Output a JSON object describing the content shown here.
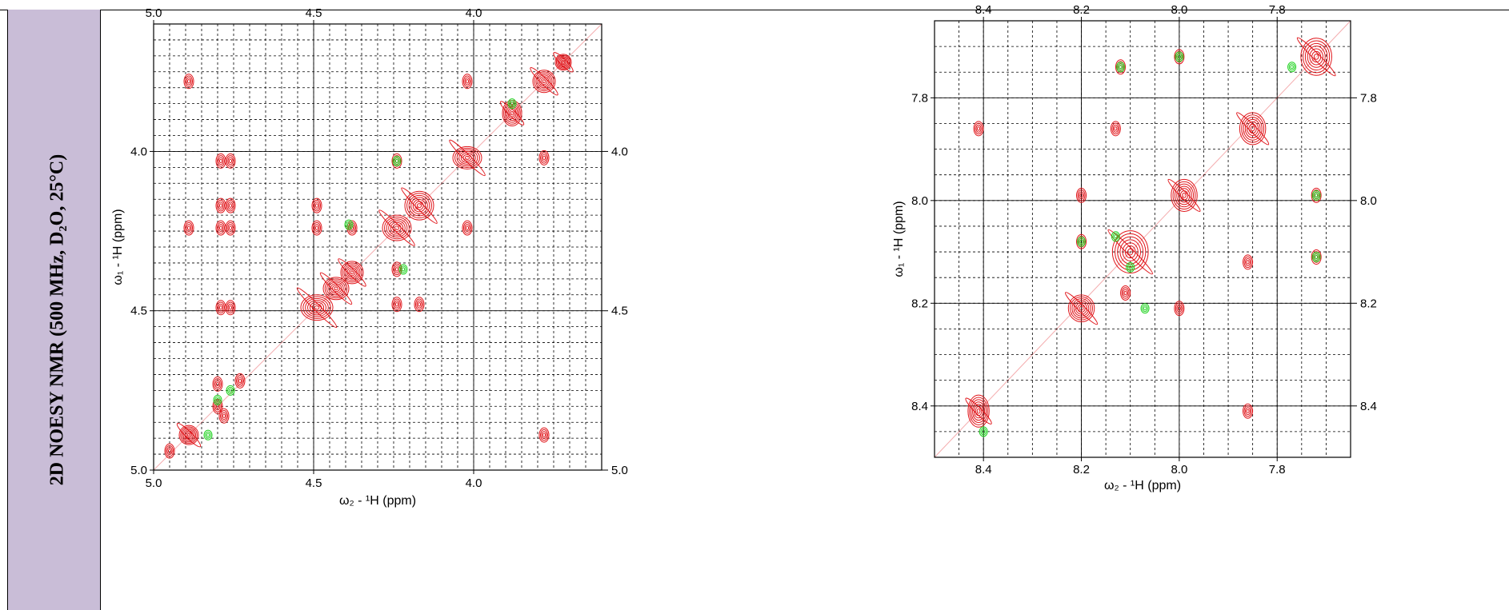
{
  "side_label": "2D NOESY NMR (500 MHz, D₂O, 25°C)",
  "colors": {
    "positive": "#e0151a",
    "negative": "#1ed21e",
    "grid": "#000000",
    "label_bg": "#c9bdd7"
  },
  "chart_data": [
    {
      "type": "heatmap",
      "xlabel": "ω₂ - ¹H  (ppm)",
      "ylabel": "ω₁ - ¹H  (ppm)",
      "xlim": [
        5.0,
        3.6
      ],
      "ylim": [
        3.6,
        5.0
      ],
      "x_ticks": [
        "5.0",
        "4.5",
        "4.0"
      ],
      "y_ticks": [
        "4.0",
        "4.5",
        "5.0"
      ],
      "right_y_ticks": [
        "4.0",
        "4.5",
        "5.0"
      ],
      "x_tick_values": [
        5.0,
        4.5,
        4.0
      ],
      "y_tick_values": [
        4.0,
        4.5,
        5.0
      ],
      "grid": "dashed",
      "diagonal_peaks": [
        {
          "x": 3.72,
          "y": 3.72,
          "w": 0.03,
          "h": 0.03
        },
        {
          "x": 3.78,
          "y": 3.78,
          "w": 0.05,
          "h": 0.05
        },
        {
          "x": 3.88,
          "y": 3.88,
          "w": 0.04,
          "h": 0.06
        },
        {
          "x": 4.02,
          "y": 4.02,
          "w": 0.07,
          "h": 0.05
        },
        {
          "x": 4.17,
          "y": 4.17,
          "w": 0.07,
          "h": 0.07
        },
        {
          "x": 4.24,
          "y": 4.24,
          "w": 0.07,
          "h": 0.06
        },
        {
          "x": 4.38,
          "y": 4.38,
          "w": 0.05,
          "h": 0.05
        },
        {
          "x": 4.43,
          "y": 4.43,
          "w": 0.06,
          "h": 0.05
        },
        {
          "x": 4.49,
          "y": 4.49,
          "w": 0.08,
          "h": 0.06
        },
        {
          "x": 4.89,
          "y": 4.89,
          "w": 0.04,
          "h": 0.04
        }
      ],
      "cross_peaks_positive": [
        {
          "x": 4.89,
          "y": 3.78
        },
        {
          "x": 4.89,
          "y": 4.24
        },
        {
          "x": 4.02,
          "y": 3.78
        },
        {
          "x": 3.78,
          "y": 4.02
        },
        {
          "x": 4.79,
          "y": 4.03
        },
        {
          "x": 4.76,
          "y": 4.03
        },
        {
          "x": 4.79,
          "y": 4.17
        },
        {
          "x": 4.76,
          "y": 4.17
        },
        {
          "x": 4.79,
          "y": 4.24
        },
        {
          "x": 4.76,
          "y": 4.24
        },
        {
          "x": 4.79,
          "y": 4.49
        },
        {
          "x": 4.76,
          "y": 4.49
        },
        {
          "x": 4.49,
          "y": 4.17
        },
        {
          "x": 4.49,
          "y": 4.24
        },
        {
          "x": 4.38,
          "y": 4.24
        },
        {
          "x": 4.24,
          "y": 4.03
        },
        {
          "x": 4.02,
          "y": 4.24
        },
        {
          "x": 4.24,
          "y": 4.37
        },
        {
          "x": 4.24,
          "y": 4.48
        },
        {
          "x": 4.17,
          "y": 4.48
        },
        {
          "x": 4.8,
          "y": 4.73
        },
        {
          "x": 4.73,
          "y": 4.72
        },
        {
          "x": 4.8,
          "y": 4.8
        },
        {
          "x": 4.78,
          "y": 4.83
        },
        {
          "x": 3.78,
          "y": 4.89
        },
        {
          "x": 4.95,
          "y": 4.94
        }
      ],
      "cross_peaks_negative": [
        {
          "x": 3.88,
          "y": 3.85
        },
        {
          "x": 4.39,
          "y": 4.23
        },
        {
          "x": 4.22,
          "y": 4.37
        },
        {
          "x": 4.8,
          "y": 4.78
        },
        {
          "x": 4.76,
          "y": 4.75
        },
        {
          "x": 4.83,
          "y": 4.89
        },
        {
          "x": 4.24,
          "y": 4.03
        }
      ]
    },
    {
      "type": "heatmap",
      "xlabel": "ω₂ - ¹H  (ppm)",
      "ylabel": "ω₁ - ¹H  (ppm)",
      "xlim": [
        8.5,
        7.65
      ],
      "ylim": [
        7.65,
        8.5
      ],
      "x_ticks": [
        "8.4",
        "8.2",
        "8.0",
        "7.8"
      ],
      "y_ticks": [
        "7.8",
        "8.0",
        "8.2",
        "8.4"
      ],
      "right_y_ticks": [
        "7.8",
        "8.0",
        "8.2",
        "8.4"
      ],
      "x_tick_values": [
        8.4,
        8.2,
        8.0,
        7.8
      ],
      "y_tick_values": [
        7.8,
        8.0,
        8.2,
        8.4
      ],
      "grid": "dashed",
      "diagonal_peaks": [
        {
          "x": 7.72,
          "y": 7.72,
          "w": 0.05,
          "h": 0.06
        },
        {
          "x": 7.85,
          "y": 7.86,
          "w": 0.04,
          "h": 0.05
        },
        {
          "x": 7.99,
          "y": 7.99,
          "w": 0.04,
          "h": 0.05
        },
        {
          "x": 8.1,
          "y": 8.1,
          "w": 0.06,
          "h": 0.07
        },
        {
          "x": 8.2,
          "y": 8.21,
          "w": 0.04,
          "h": 0.04
        },
        {
          "x": 8.41,
          "y": 8.41,
          "w": 0.03,
          "h": 0.05
        }
      ],
      "cross_peaks_positive": [
        {
          "x": 8.41,
          "y": 7.86
        },
        {
          "x": 8.2,
          "y": 7.99
        },
        {
          "x": 8.2,
          "y": 8.08
        },
        {
          "x": 8.13,
          "y": 7.86
        },
        {
          "x": 8.12,
          "y": 7.74
        },
        {
          "x": 8.0,
          "y": 7.72
        },
        {
          "x": 7.72,
          "y": 7.99
        },
        {
          "x": 7.72,
          "y": 8.11
        },
        {
          "x": 7.86,
          "y": 8.12
        },
        {
          "x": 8.0,
          "y": 8.21
        },
        {
          "x": 8.11,
          "y": 8.18
        },
        {
          "x": 7.86,
          "y": 8.41
        }
      ],
      "cross_peaks_negative": [
        {
          "x": 8.12,
          "y": 7.74
        },
        {
          "x": 8.0,
          "y": 7.72
        },
        {
          "x": 7.72,
          "y": 7.99
        },
        {
          "x": 7.72,
          "y": 8.11
        },
        {
          "x": 8.2,
          "y": 8.08
        },
        {
          "x": 8.13,
          "y": 8.07
        },
        {
          "x": 8.07,
          "y": 8.21
        },
        {
          "x": 8.1,
          "y": 8.13
        },
        {
          "x": 8.4,
          "y": 8.45
        },
        {
          "x": 7.77,
          "y": 7.74
        }
      ]
    }
  ]
}
